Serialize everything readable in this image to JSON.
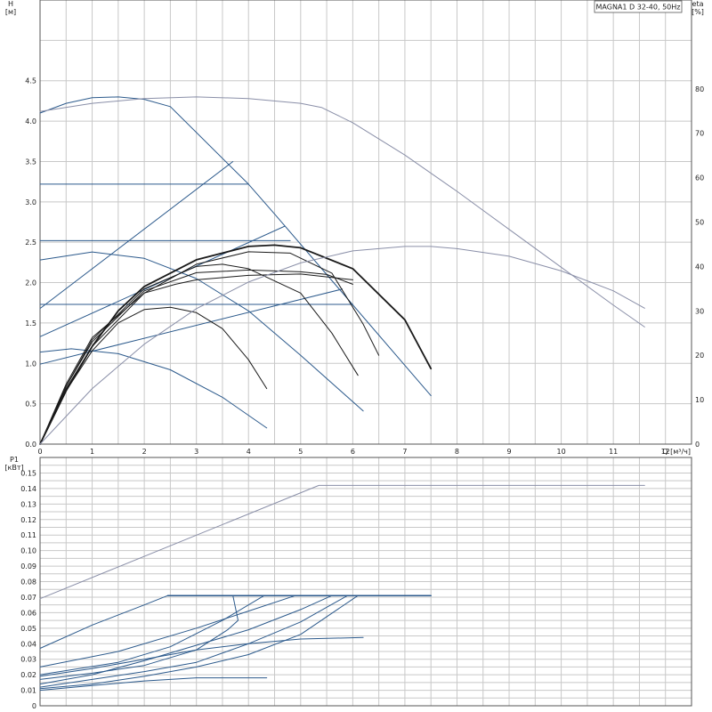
{
  "title": "MAGNA1 D 32-40, 50Hz",
  "colors": {
    "blue": "#2c5a8c",
    "black": "#1a1a1a",
    "gray": "#8a8fa8",
    "grid": "#c8c8c8"
  },
  "chart_data": [
    {
      "type": "line",
      "title": "MAGNA1 D 32-40, 50Hz",
      "xlabel": "Q [м³/ч]",
      "ylabel": "H\n[м]",
      "y2label": "eta\n[%]",
      "xlim": [
        0,
        12.5
      ],
      "ylim": [
        0,
        5.5
      ],
      "y2lim": [
        0,
        100
      ],
      "xticks": [
        "0",
        "1",
        "2",
        "3",
        "4",
        "5",
        "6",
        "7",
        "8",
        "9",
        "10",
        "11",
        "12"
      ],
      "yticks": [
        "0.0",
        "0.5",
        "1.0",
        "1.5",
        "2.0",
        "2.5",
        "3.0",
        "3.5",
        "4.0",
        "4.5"
      ],
      "y2ticks": [
        "0",
        "10",
        "20",
        "30",
        "40",
        "50",
        "60",
        "70",
        "80"
      ],
      "grid": true,
      "series": [
        {
          "color": "blue",
          "axis": "y",
          "points": [
            [
              0,
              4.1
            ],
            [
              0.5,
              4.22
            ],
            [
              1,
              4.29
            ],
            [
              1.5,
              4.3
            ],
            [
              2,
              4.27
            ],
            [
              2.5,
              4.18
            ],
            [
              4,
              3.22
            ],
            [
              4.5,
              2.85
            ],
            [
              5.5,
              2.1
            ],
            [
              6.5,
              1.35
            ],
            [
              7.5,
              0.6
            ]
          ]
        },
        {
          "color": "gray",
          "axis": "y",
          "points": [
            [
              0,
              4.12
            ],
            [
              1,
              4.22
            ],
            [
              2,
              4.28
            ],
            [
              3,
              4.3
            ],
            [
              4,
              4.28
            ],
            [
              5,
              4.22
            ],
            [
              5.4,
              4.17
            ],
            [
              6,
              3.98
            ],
            [
              7,
              3.58
            ],
            [
              8,
              3.13
            ],
            [
              9,
              2.66
            ],
            [
              10,
              2.19
            ],
            [
              11,
              1.72
            ],
            [
              11.6,
              1.45
            ]
          ]
        },
        {
          "color": "blue",
          "axis": "y",
          "points": [
            [
              0,
              3.22
            ],
            [
              4,
              3.22
            ]
          ]
        },
        {
          "color": "blue",
          "axis": "y",
          "points": [
            [
              0,
              2.52
            ],
            [
              4.8,
              2.52
            ]
          ]
        },
        {
          "color": "blue",
          "axis": "y",
          "points": [
            [
              0,
              1.73
            ],
            [
              6,
              1.73
            ]
          ]
        },
        {
          "color": "blue",
          "axis": "y",
          "points": [
            [
              0,
              1.68
            ],
            [
              3.7,
              3.5
            ]
          ]
        },
        {
          "color": "blue",
          "axis": "y",
          "points": [
            [
              0,
              1.33
            ],
            [
              4.7,
              2.7
            ]
          ]
        },
        {
          "color": "blue",
          "axis": "y",
          "points": [
            [
              0,
              0.99
            ],
            [
              5.8,
              1.92
            ]
          ]
        },
        {
          "color": "blue",
          "axis": "y",
          "points": [
            [
              0,
              2.28
            ],
            [
              1,
              2.38
            ],
            [
              2,
              2.3
            ],
            [
              3,
              2.05
            ],
            [
              4,
              1.65
            ],
            [
              5,
              1.1
            ],
            [
              6.2,
              0.41
            ]
          ]
        },
        {
          "color": "blue",
          "axis": "y",
          "points": [
            [
              0,
              1.14
            ],
            [
              0.6,
              1.18
            ],
            [
              1.5,
              1.12
            ],
            [
              2.5,
              0.92
            ],
            [
              3.5,
              0.58
            ],
            [
              4.35,
              0.2
            ]
          ]
        },
        {
          "color": "black",
          "axis": "y2",
          "width": 1.8,
          "points": [
            [
              0,
              0
            ],
            [
              0.5,
              12
            ],
            [
              1,
              22
            ],
            [
              1.5,
              30
            ],
            [
              2,
              35.5
            ],
            [
              3,
              41.5
            ],
            [
              4,
              44.5
            ],
            [
              4.5,
              44.8
            ],
            [
              5,
              44.2
            ],
            [
              6,
              39.5
            ],
            [
              7,
              28
            ],
            [
              7.5,
              17
            ]
          ]
        },
        {
          "color": "black",
          "axis": "y2",
          "points": [
            [
              0,
              0
            ],
            [
              0.5,
              12.5
            ],
            [
              1,
              22
            ],
            [
              2,
              34
            ],
            [
              3,
              40.5
            ],
            [
              4,
              43.3
            ],
            [
              4.8,
              43
            ],
            [
              5.6,
              38.5
            ],
            [
              6.2,
              27
            ],
            [
              6.5,
              20
            ]
          ]
        },
        {
          "color": "black",
          "axis": "y2",
          "points": [
            [
              0,
              0
            ],
            [
              0.5,
              13
            ],
            [
              1,
              23.5
            ],
            [
              2,
              35
            ],
            [
              3,
              40
            ],
            [
              3.5,
              40.5
            ],
            [
              4,
              39.5
            ],
            [
              5,
              34
            ],
            [
              5.6,
              25
            ],
            [
              6.1,
              15.5
            ]
          ]
        },
        {
          "color": "black",
          "axis": "y2",
          "points": [
            [
              0,
              0
            ],
            [
              0.5,
              13
            ],
            [
              1,
              23
            ],
            [
              2,
              34.5
            ],
            [
              3,
              38.6
            ],
            [
              4,
              39.2
            ],
            [
              5,
              38.8
            ],
            [
              5.5,
              38.2
            ],
            [
              6,
              36
            ]
          ]
        },
        {
          "color": "black",
          "axis": "y2",
          "points": [
            [
              0,
              0
            ],
            [
              0.5,
              13.5
            ],
            [
              1,
              24
            ],
            [
              2,
              34
            ],
            [
              2.6,
              36
            ],
            [
              3,
              37
            ],
            [
              4,
              38
            ],
            [
              5,
              38.3
            ],
            [
              6,
              37
            ]
          ]
        },
        {
          "color": "black",
          "axis": "y2",
          "points": [
            [
              0,
              0
            ],
            [
              0.5,
              12
            ],
            [
              1,
              21
            ],
            [
              1.5,
              27.3
            ],
            [
              2,
              30.3
            ],
            [
              2.5,
              30.8
            ],
            [
              3,
              29.6
            ],
            [
              3.5,
              26
            ],
            [
              4,
              19
            ],
            [
              4.35,
              12.5
            ]
          ]
        },
        {
          "color": "gray",
          "axis": "y2",
          "points": [
            [
              0,
              0
            ],
            [
              1,
              12.5
            ],
            [
              2,
              22.5
            ],
            [
              3,
              30.5
            ],
            [
              4,
              36.5
            ],
            [
              5,
              40.8
            ],
            [
              6,
              43.5
            ],
            [
              7,
              44.5
            ],
            [
              7.5,
              44.5
            ],
            [
              8,
              44
            ],
            [
              9,
              42.3
            ],
            [
              10,
              39
            ],
            [
              11,
              34.5
            ],
            [
              11.6,
              30.6
            ]
          ]
        }
      ]
    },
    {
      "type": "line",
      "xlabel": "",
      "ylabel": "P1\n[кВт]",
      "xlim": [
        0,
        12.5
      ],
      "ylim": [
        0,
        0.16
      ],
      "yticks": [
        "0",
        "0.01",
        "0.02",
        "0.03",
        "0.04",
        "0.05",
        "0.06",
        "0.07",
        "0.08",
        "0.09",
        "0.10",
        "0.11",
        "0.12",
        "0.13",
        "0.14",
        "0.15"
      ],
      "grid": true,
      "series": [
        {
          "color": "gray",
          "points": [
            [
              0,
              0.069
            ],
            [
              5.35,
              0.142
            ],
            [
              11.6,
              0.142
            ]
          ]
        },
        {
          "color": "blue",
          "width": 1.5,
          "points": [
            [
              2.45,
              0.071
            ],
            [
              7.5,
              0.071
            ]
          ]
        },
        {
          "color": "blue",
          "points": [
            [
              0,
              0.037
            ],
            [
              1,
              0.052
            ],
            [
              2,
              0.065
            ],
            [
              2.45,
              0.071
            ]
          ]
        },
        {
          "color": "blue",
          "points": [
            [
              0,
              0.025
            ],
            [
              1.5,
              0.035
            ],
            [
              3,
              0.05
            ],
            [
              4,
              0.061
            ],
            [
              4.9,
              0.071
            ]
          ]
        },
        {
          "color": "blue",
          "points": [
            [
              0,
              0.02
            ],
            [
              1.5,
              0.028
            ],
            [
              2.5,
              0.038
            ],
            [
              3.5,
              0.055
            ],
            [
              4.3,
              0.071
            ]
          ]
        },
        {
          "color": "blue",
          "points": [
            [
              0,
              0.017
            ],
            [
              1,
              0.021
            ],
            [
              2,
              0.026
            ],
            [
              3,
              0.036
            ],
            [
              3.6,
              0.049
            ],
            [
              3.8,
              0.055
            ],
            [
              3.7,
              0.071
            ]
          ]
        },
        {
          "color": "blue",
          "points": [
            [
              0,
              0.014
            ],
            [
              1,
              0.02
            ],
            [
              2,
              0.029
            ],
            [
              3,
              0.039
            ],
            [
              4,
              0.049
            ],
            [
              5,
              0.062
            ],
            [
              5.6,
              0.071
            ]
          ]
        },
        {
          "color": "blue",
          "points": [
            [
              0,
              0.012
            ],
            [
              1,
              0.017
            ],
            [
              2,
              0.022
            ],
            [
              3,
              0.028
            ],
            [
              4,
              0.04
            ],
            [
              5,
              0.054
            ],
            [
              5.9,
              0.071
            ]
          ]
        },
        {
          "color": "blue",
          "points": [
            [
              0,
              0.011
            ],
            [
              1,
              0.014
            ],
            [
              2,
              0.019
            ],
            [
              3,
              0.025
            ],
            [
              4,
              0.033
            ],
            [
              5,
              0.046
            ],
            [
              6.1,
              0.071
            ]
          ]
        },
        {
          "color": "blue",
          "points": [
            [
              0,
              0.019
            ],
            [
              1,
              0.024
            ],
            [
              2,
              0.03
            ],
            [
              3,
              0.036
            ],
            [
              4,
              0.04
            ],
            [
              5,
              0.043
            ],
            [
              6.2,
              0.044
            ]
          ]
        },
        {
          "color": "blue",
          "points": [
            [
              0,
              0.01
            ],
            [
              1,
              0.013
            ],
            [
              2,
              0.016
            ],
            [
              3,
              0.018
            ],
            [
              4.35,
              0.018
            ]
          ]
        }
      ]
    }
  ]
}
